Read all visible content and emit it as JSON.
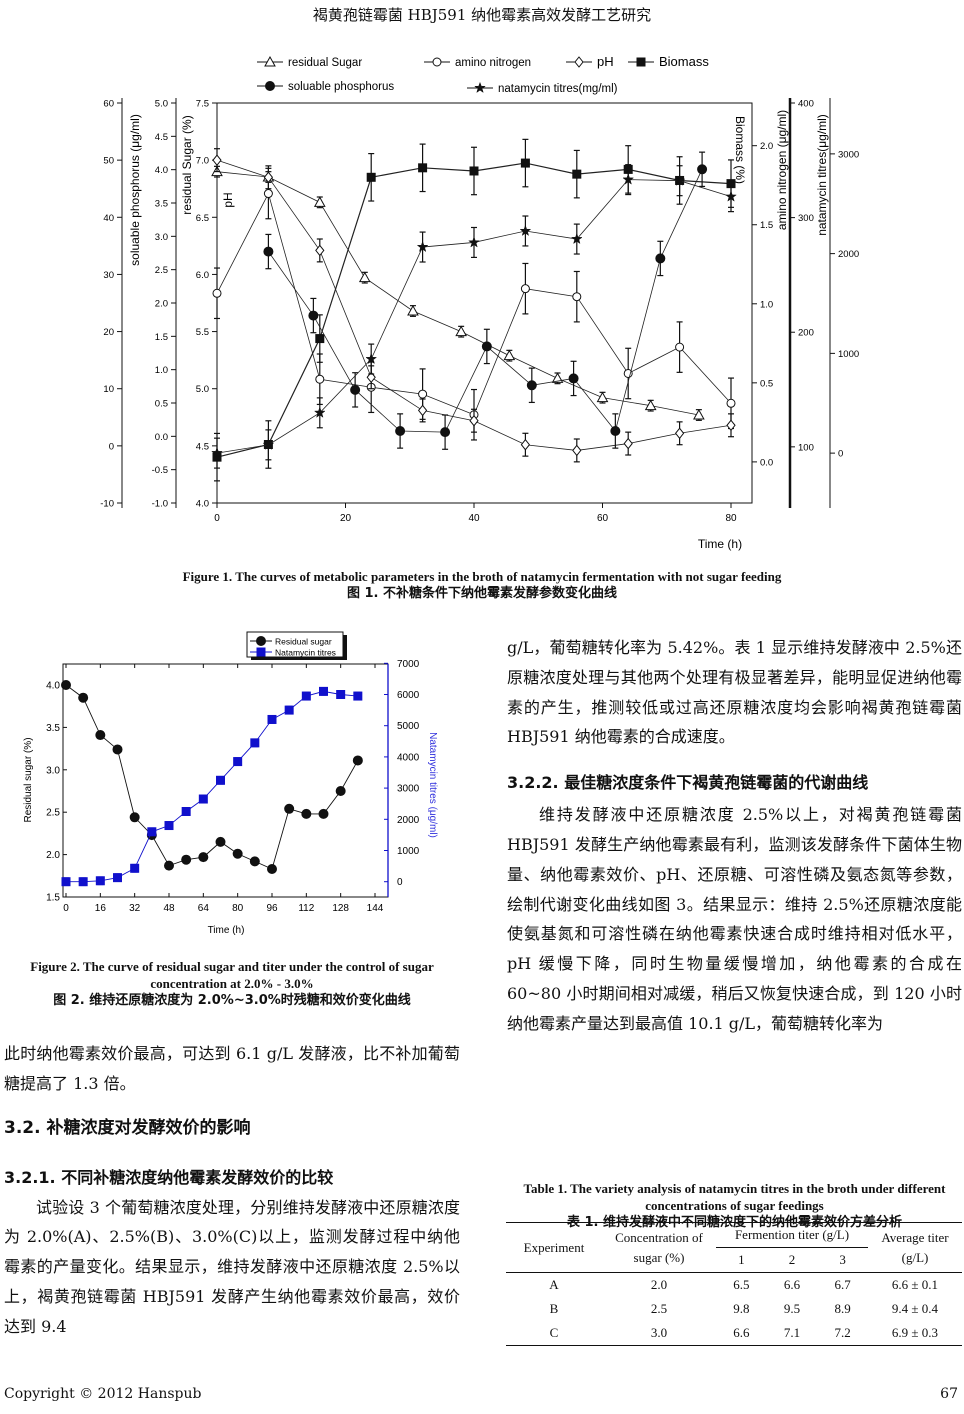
{
  "header": {
    "running_title": "褐黄孢链霉菌 HBJ591 纳他霉素高效发酵工艺研究"
  },
  "figure1": {
    "caption_en": "Figure 1. The curves of metabolic parameters in the broth of natamycin fermentation with not sugar feeding",
    "caption_zh": "图 1. 不补糖条件下纳他霉素发酵参数变化曲线"
  },
  "figure2": {
    "caption_en": "Figure 2. The curve of residual sugar and titer under the control of sugar concentration at 2.0% - 3.0%",
    "caption_zh": "图 2. 维持还原糖浓度为 2.0%~3.0%时残糖和效价变化曲线"
  },
  "chart_data": [
    {
      "type": "line",
      "title": "",
      "xlabel": "Time (h)",
      "xlim": [
        0,
        84
      ],
      "xticks": [
        0,
        20,
        40,
        60,
        80
      ],
      "axes": {
        "phosphorus": {
          "label": "soluable phosphorus (μg/ml)",
          "range": [
            -10,
            60
          ],
          "ticks": [
            -10,
            0,
            10,
            20,
            30,
            40,
            50,
            60
          ],
          "decimals": 0
        },
        "sugar": {
          "label": "residual Sugar (%)",
          "range": [
            -1.0,
            5.0
          ],
          "ticks": [
            -1.0,
            -0.5,
            0.0,
            0.5,
            1.0,
            1.5,
            2.0,
            2.5,
            3.0,
            3.5,
            4.0,
            4.5,
            5.0
          ],
          "decimals": 1
        },
        "ph": {
          "label": "pH",
          "range": [
            4.0,
            7.5
          ],
          "ticks": [
            4.0,
            4.5,
            5.0,
            5.5,
            6.0,
            6.5,
            7.0,
            7.5
          ],
          "decimals": 1
        },
        "biomass": {
          "label": "Biomass (%)",
          "range": [
            -0.26,
            2.27
          ],
          "ticks": [
            0.0,
            0.5,
            1.0,
            1.5,
            2.0
          ],
          "decimals": 1
        },
        "amino": {
          "label": "amino nitrogen (μg/ml)",
          "range": [
            51,
            400
          ],
          "ticks": [
            100,
            200,
            300,
            400
          ],
          "decimals": 0
        },
        "natamycin": {
          "label": "natamycin titres(μg/ml)",
          "range": [
            -500,
            3510
          ],
          "ticks": [
            0,
            1000,
            2000,
            3000
          ],
          "decimals": 0
        }
      },
      "series": [
        {
          "name": "residual Sugar",
          "axis": "sugar",
          "marker": "triangle-open",
          "err": 0.08,
          "x": [
            0,
            8,
            16,
            23,
            30.5,
            38,
            45.5,
            53,
            60,
            67.5,
            75
          ],
          "y": [
            3.97,
            3.89,
            3.51,
            2.38,
            1.88,
            1.57,
            1.21,
            0.87,
            0.58,
            0.46,
            0.32
          ]
        },
        {
          "name": "amino nitrogen",
          "axis": "amino",
          "marker": "circle-open",
          "err": 22,
          "x": [
            0,
            8,
            16,
            24,
            32,
            40,
            48,
            56,
            64,
            72,
            80
          ],
          "y": [
            234,
            321,
            159,
            152,
            146,
            128,
            238,
            231,
            164,
            187,
            138
          ]
        },
        {
          "name": "pH",
          "axis": "ph",
          "marker": "diamond-open",
          "err": 0.1,
          "x": [
            0,
            8,
            16,
            24,
            32,
            40,
            48,
            56,
            64,
            72,
            80
          ],
          "y": [
            7.0,
            6.85,
            6.21,
            5.1,
            4.81,
            4.72,
            4.51,
            4.46,
            4.52,
            4.61,
            4.68
          ]
        },
        {
          "name": "Biomass",
          "axis": "biomass",
          "marker": "square-filled",
          "err": 0.15,
          "x": [
            0,
            8,
            16,
            24,
            32,
            40,
            48,
            56,
            64,
            72,
            80
          ],
          "y": [
            0.03,
            0.11,
            0.78,
            1.8,
            1.86,
            1.84,
            1.89,
            1.82,
            1.85,
            1.78,
            1.76
          ]
        },
        {
          "name": "soluable phosphorus",
          "axis": "phosphorus",
          "marker": "circle-filled",
          "err": 3,
          "x": [
            8,
            15,
            21.5,
            28.5,
            35.5,
            42,
            49,
            55.5,
            62,
            69,
            75.5
          ],
          "y": [
            34,
            22.8,
            9.8,
            2.6,
            2.4,
            17.4,
            10.6,
            11.8,
            2.6,
            32.8,
            48.4
          ]
        },
        {
          "name": "natamycin titres(mg/ml)",
          "axis": "natamycin",
          "marker": "star-filled",
          "err": 150,
          "x": [
            0,
            8,
            16,
            24,
            32,
            40,
            48,
            56,
            64,
            72,
            80
          ],
          "y": [
            0,
            83,
            404,
            943,
            2066,
            2112,
            2227,
            2146,
            2742,
            2731,
            2571
          ]
        }
      ],
      "legend": [
        "residual Sugar",
        "amino nitrogen",
        "pH",
        "Biomass",
        "soluable phosphorus",
        "natamycin titres(mg/ml)"
      ],
      "legend_position": "top",
      "grid": false
    },
    {
      "type": "line",
      "title": "",
      "xlabel": "Time (h)",
      "ylabel": "Residual sugar (%)",
      "y2label": "Natamycin titres (μg/ml)",
      "xlim": [
        0,
        144
      ],
      "xticks": [
        0,
        16,
        32,
        48,
        64,
        80,
        96,
        112,
        128,
        144
      ],
      "ylim": [
        1.5,
        4.25
      ],
      "yticks": [
        1.5,
        2.0,
        2.5,
        3.0,
        3.5,
        4.0
      ],
      "y2lim": [
        -500,
        7000
      ],
      "y2ticks": [
        0,
        1000,
        2000,
        3000,
        4000,
        5000,
        6000,
        7000
      ],
      "x": [
        0,
        8,
        16,
        24,
        32,
        40,
        48,
        56,
        64,
        72,
        80,
        88,
        96,
        104,
        112,
        120,
        128,
        136
      ],
      "series": [
        {
          "name": "Residual sugar",
          "axis": "left",
          "color": "#111111",
          "marker": "circle",
          "err": 0.04,
          "values": [
            4.0,
            3.85,
            3.41,
            3.24,
            2.44,
            2.23,
            1.87,
            1.94,
            1.97,
            2.15,
            2.01,
            1.92,
            1.83,
            2.54,
            2.48,
            2.48,
            2.75,
            3.11
          ]
        },
        {
          "name": "Natamycin titres",
          "axis": "right",
          "color": "#1010cc",
          "marker": "square",
          "err": 120,
          "values": [
            0,
            0,
            30,
            130,
            430,
            1600,
            1800,
            2250,
            2650,
            3250,
            3850,
            4450,
            5200,
            5500,
            5950,
            6100,
            6000,
            5950
          ]
        }
      ],
      "legend_position": "top-right",
      "grid": false
    }
  ],
  "left_column": {
    "p1": "此时纳他霉素效价最高，可达到 6.1 g/L 发酵液，比不补加葡萄糖提高了 1.3 倍。",
    "h_3_2": "3.2. 补糖浓度对发酵效价的影响",
    "h_3_2_1": "3.2.1. 不同补糖浓度纳他霉素发酵效价的比较",
    "p2": "试验设 3 个葡萄糖浓度处理，分别维持发酵液中还原糖浓度为 2.0%(A)、2.5%(B)、3.0%(C)以上，监测发酵过程中纳他霉素的产量变化。结果显示，维持发酵液中还原糖浓度 2.5%以上，褐黄孢链霉菌 HBJ591 发酵产生纳他霉素效价最高，效价达到 9.4"
  },
  "right_column": {
    "p1": "g/L，葡萄糖转化率为 5.42%。表 1 显示维持发酵液中 2.5%还原糖浓度处理与其他两个处理有极显著差异，能明显促进纳他霉素的产生，推测较低或过高还原糖浓度均会影响褐黄孢链霉菌 HBJ591 纳他霉素的合成速度。",
    "h_3_2_2": "3.2.2. 最佳糖浓度条件下褐黄孢链霉菌的代谢曲线",
    "p2": "维持发酵液中还原糖浓度 2.5%以上，对褐黄孢链霉菌 HBJ591 发酵生产纳他霉素最有利，监测该发酵条件下菌体生物量、纳他霉素效价、pH、还原糖、可溶性磷及氨态氮等参数，绘制代谢变化曲线如图 3。结果显示：维持 2.5%还原糖浓度能使氨基氮和可溶性磷在纳他霉素快速合成时维持相对低水平，pH 缓慢下降，同时生物量缓慢增加，纳他霉素的合成在 60~80 小时期间相对减缓，稍后又恢复快速合成，到 120 小时纳他霉素产量达到最高值 10.1 g/L，葡萄糖转化率为"
  },
  "table1": {
    "caption_en": "Table 1. The variety analysis of natamycin titres in the broth under different concentrations of sugar feedings",
    "caption_zh": "表 1. 维持发酵液中不同糖浓度下的纳他霉素效价方差分析",
    "headers": {
      "experiment": "Experiment",
      "concentration": "Concentration of sugar (%)",
      "titer_group": "Fermention titer (g/L)",
      "rep": [
        "1",
        "2",
        "3"
      ],
      "average": "Average titer (g/L)"
    },
    "rows": [
      {
        "experiment": "A",
        "concentration": "2.0",
        "reps": [
          "6.5",
          "6.6",
          "6.7"
        ],
        "average": "6.6 ± 0.1"
      },
      {
        "experiment": "B",
        "concentration": "2.5",
        "reps": [
          "9.8",
          "9.5",
          "8.9"
        ],
        "average": "9.4 ± 0.4"
      },
      {
        "experiment": "C",
        "concentration": "3.0",
        "reps": [
          "6.6",
          "7.1",
          "7.2"
        ],
        "average": "6.9 ± 0.3"
      }
    ]
  },
  "footer": {
    "copyright": "Copyright © 2012 Hanspub",
    "page_number": "67"
  }
}
